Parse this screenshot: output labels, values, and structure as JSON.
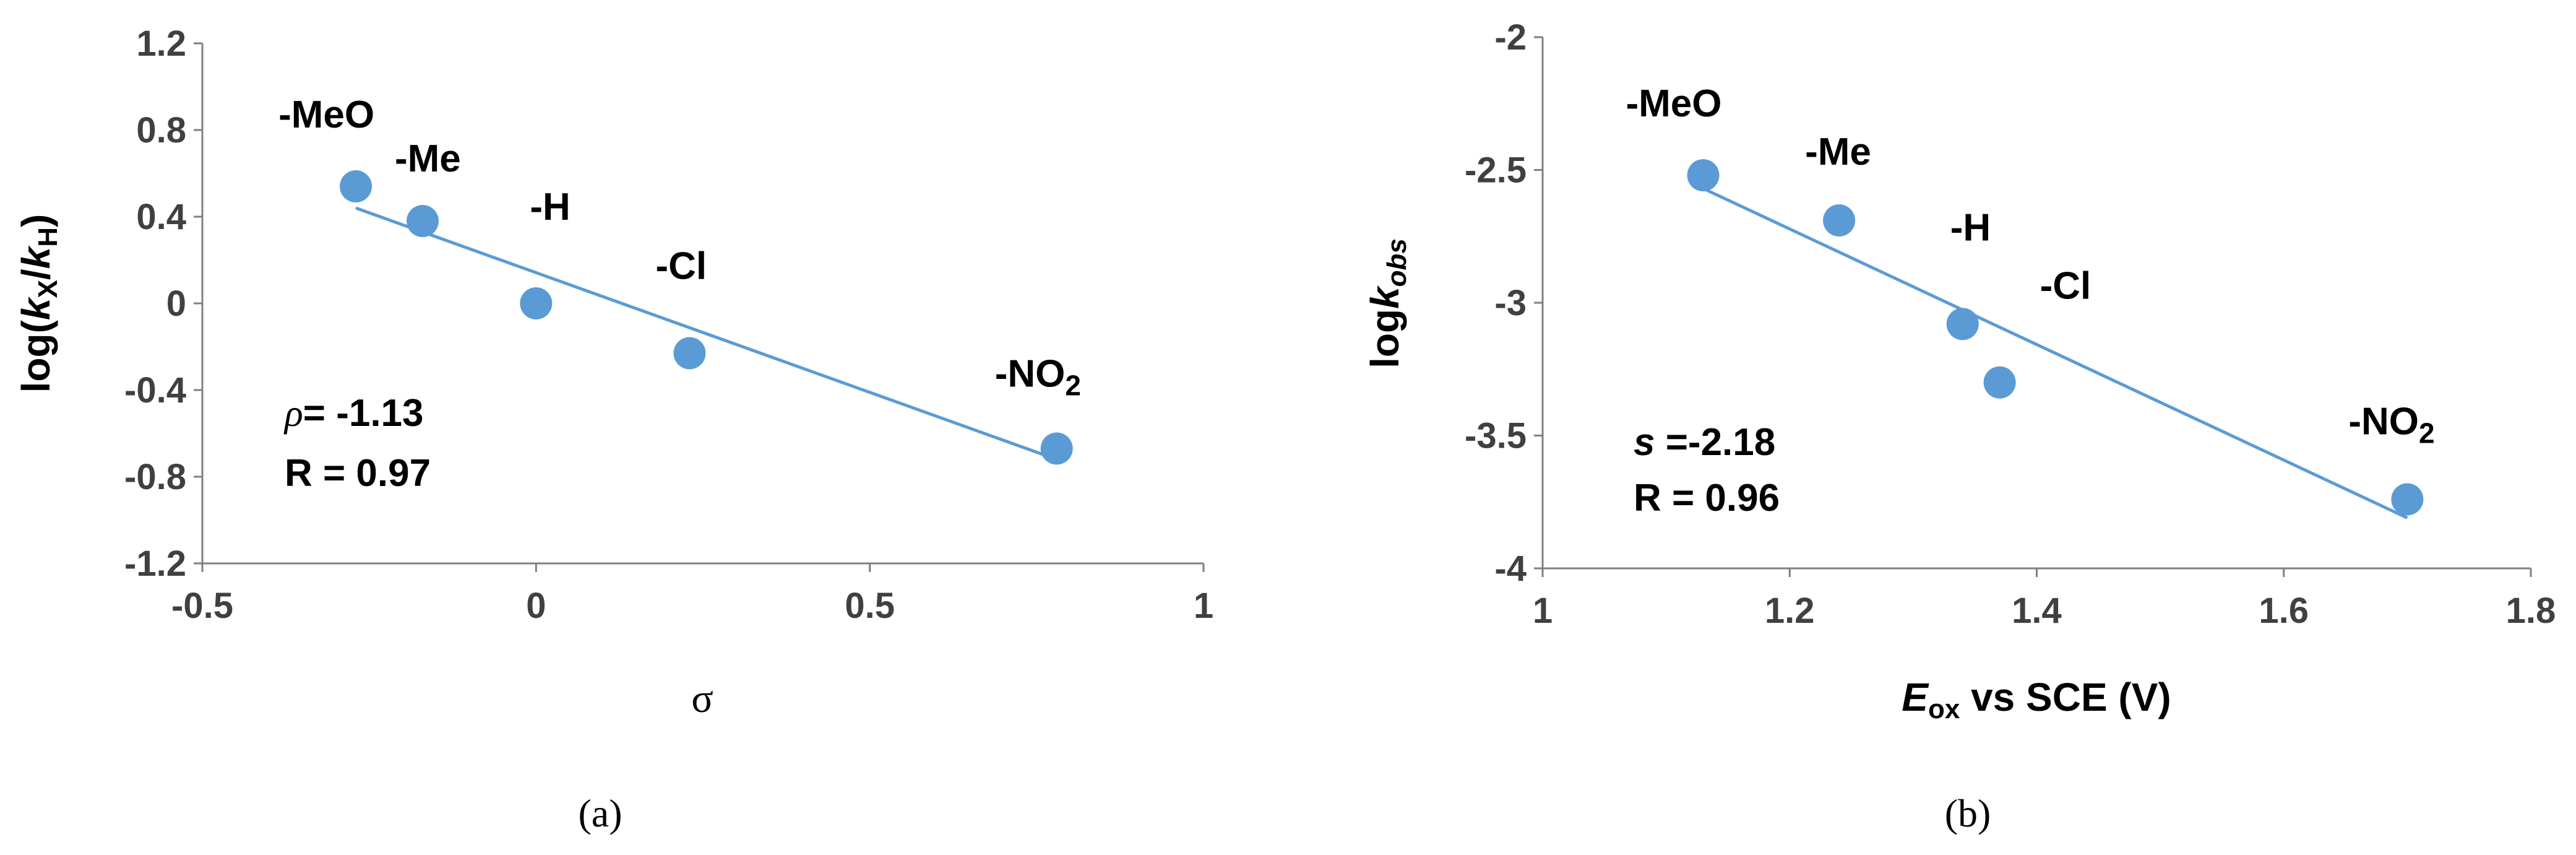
{
  "chart_data": [
    {
      "type": "scatter",
      "panel": "(a)",
      "xlabel": "σ",
      "ylabel": "log(kX/kH)",
      "xlim": [
        -0.5,
        1
      ],
      "ylim": [
        -1.2,
        1.2
      ],
      "x_ticks": [
        "-0.5",
        "0",
        "0.5",
        "1"
      ],
      "y_ticks": [
        "1.2",
        "0.8",
        "0.4",
        "0",
        "-0.4",
        "-0.8",
        "-1.2"
      ],
      "points": [
        {
          "label": "-MeO",
          "x": -0.27,
          "y": 0.54
        },
        {
          "label": "-Me",
          "x": -0.17,
          "y": 0.38
        },
        {
          "label": "-H",
          "x": 0.0,
          "y": 0.0
        },
        {
          "label": "-Cl",
          "x": 0.23,
          "y": -0.23
        },
        {
          "label": "-NO2",
          "x": 0.78,
          "y": -0.67
        }
      ],
      "fit_line": {
        "x": [
          -0.27,
          0.78
        ],
        "y": [
          0.44,
          -0.72
        ]
      },
      "stats": {
        "slope_symbol": "ρ",
        "slope": "= -1.13",
        "r": "R = 0.97"
      },
      "grid": false,
      "color": "#5b9bd5"
    },
    {
      "type": "scatter",
      "panel": "(b)",
      "xlabel": "Eox vs SCE (V)",
      "ylabel": "logkobs",
      "xlim": [
        1,
        1.8
      ],
      "ylim": [
        -4,
        -2
      ],
      "x_ticks": [
        "1",
        "1.2",
        "1.4",
        "1.6",
        "1.8"
      ],
      "y_ticks": [
        "-2",
        "-2.5",
        "-3",
        "-3.5",
        "-4"
      ],
      "points": [
        {
          "label": "-MeO",
          "x": 1.13,
          "y": -2.52
        },
        {
          "label": "-Me",
          "x": 1.24,
          "y": -2.69
        },
        {
          "label": "-H",
          "x": 1.34,
          "y": -3.08
        },
        {
          "label": "-Cl",
          "x": 1.37,
          "y": -3.3
        },
        {
          "label": "-NO2",
          "x": 1.7,
          "y": -3.74
        }
      ],
      "fit_line": {
        "x": [
          1.13,
          1.7
        ],
        "y": [
          -2.57,
          -3.81
        ]
      },
      "stats": {
        "slope_symbol": "s",
        "slope": "=-2.18",
        "r": "R = 0.96"
      },
      "grid": false,
      "color": "#5b9bd5"
    }
  ]
}
